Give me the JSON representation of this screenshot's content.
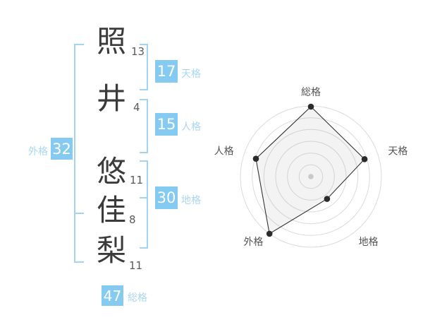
{
  "name_panel": {
    "characters": [
      {
        "char": "照",
        "strokes": "13"
      },
      {
        "char": "井",
        "strokes": "4"
      },
      {
        "char": "悠",
        "strokes": "11"
      },
      {
        "char": "佳",
        "strokes": "8"
      },
      {
        "char": "梨",
        "strokes": "11"
      }
    ],
    "badges": {
      "tenkaku": {
        "value": "17",
        "label": "天格"
      },
      "jinkaku": {
        "value": "15",
        "label": "人格"
      },
      "chikaku": {
        "value": "30",
        "label": "地格"
      },
      "gaikaku": {
        "value": "32",
        "label": "外格"
      },
      "soukaku": {
        "value": "47",
        "label": "総格"
      }
    },
    "colors": {
      "badge_bg": "#85CAF0",
      "badge_text": "#FFFFFF",
      "label_text": "#A9D7F3",
      "bracket": "#A5D3F2",
      "kanji_text": "#3B3B3B",
      "stroke_text": "#5A5A5A"
    }
  },
  "chart_data": {
    "type": "radar",
    "categories": [
      "総格",
      "天格",
      "地格",
      "外格",
      "人格"
    ],
    "values": [
      99,
      80,
      39,
      100,
      82
    ],
    "max": 100,
    "rings": 6,
    "angles_deg": [
      90,
      18,
      -54,
      -126,
      162
    ],
    "legend_position": "none",
    "grid": true,
    "colors": {
      "grid": "#DBDBDB",
      "fill": "rgba(160,160,160,0.12)",
      "stroke": "#333333",
      "point": "#2B2B2B",
      "center_dot": "#C9C9C9",
      "label": "#555555"
    }
  }
}
